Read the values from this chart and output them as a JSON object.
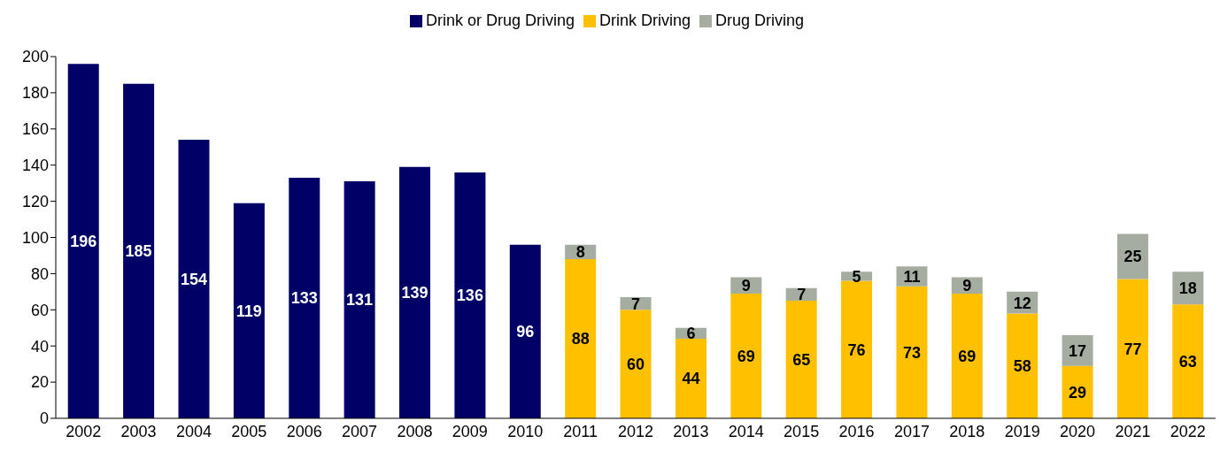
{
  "chart_data": {
    "type": "bar",
    "stacked": true,
    "categories": [
      "2002",
      "2003",
      "2004",
      "2005",
      "2006",
      "2007",
      "2008",
      "2009",
      "2010",
      "2011",
      "2012",
      "2013",
      "2014",
      "2015",
      "2016",
      "2017",
      "2018",
      "2019",
      "2020",
      "2021",
      "2022"
    ],
    "series": [
      {
        "name": "Drink or Drug Driving",
        "color": "#000066",
        "values": [
          196,
          185,
          154,
          119,
          133,
          131,
          139,
          136,
          96,
          null,
          null,
          null,
          null,
          null,
          null,
          null,
          null,
          null,
          null,
          null,
          null
        ]
      },
      {
        "name": "Drink Driving",
        "color": "#ffc000",
        "values": [
          null,
          null,
          null,
          null,
          null,
          null,
          null,
          null,
          null,
          88,
          60,
          44,
          69,
          65,
          76,
          73,
          69,
          58,
          29,
          77,
          63
        ]
      },
      {
        "name": "Drug Driving",
        "color": "#a5aca0",
        "values": [
          null,
          null,
          null,
          null,
          null,
          null,
          null,
          null,
          null,
          8,
          7,
          6,
          9,
          7,
          5,
          11,
          9,
          12,
          17,
          25,
          18
        ]
      }
    ],
    "ylim": [
      0,
      200
    ],
    "yticks": [
      0,
      20,
      40,
      60,
      80,
      100,
      120,
      140,
      160,
      180,
      200
    ],
    "grid": false,
    "legend": "top",
    "data_labels": true
  }
}
